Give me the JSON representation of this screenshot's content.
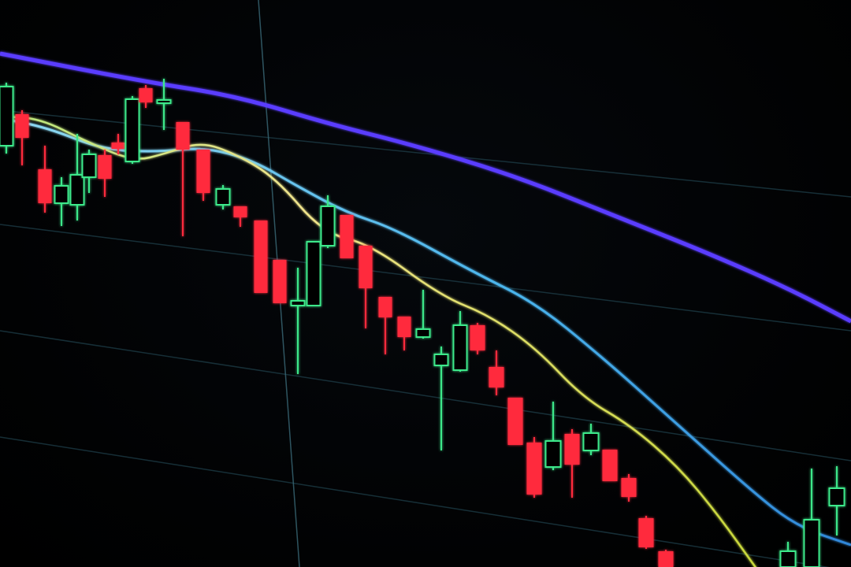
{
  "scene": {
    "subject": "candlestick-stock-chart-on-screen",
    "background_color": "#010203",
    "gridline_color": "#1c3a44",
    "bullish_candle_color": "#3ee88a",
    "bearish_candle_color": "#ff2a3c",
    "moving_average_colors": {
      "long": "#5a3cff",
      "medium": "#5ab8e6",
      "short": "#e8e07a"
    }
  }
}
